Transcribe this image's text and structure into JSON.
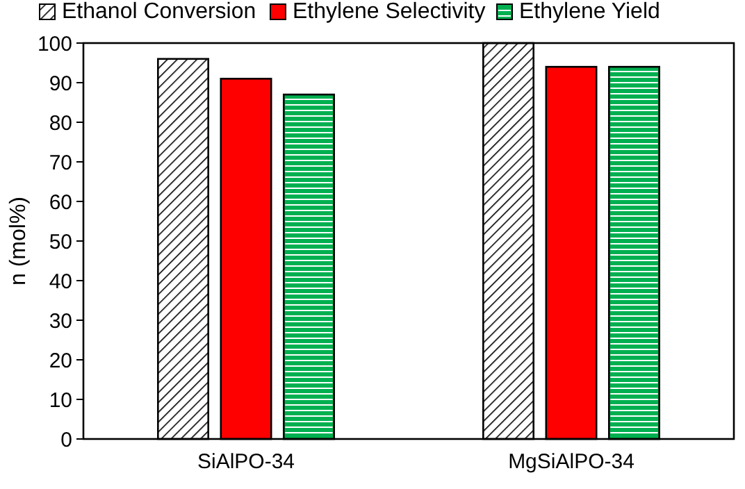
{
  "chart_data": {
    "type": "bar",
    "ylabel": "n (mol%)",
    "categories": [
      "SiAlPO-34",
      "MgSiAlPO-34"
    ],
    "series": [
      {
        "name": "Ethanol Conversion",
        "color": "#000000",
        "values": [
          96,
          100
        ]
      },
      {
        "name": "Ethylene Selectivity",
        "color": "#ff0000",
        "values": [
          91,
          94
        ]
      },
      {
        "name": "Ethylene Yield",
        "color": "#00b050",
        "values": [
          87,
          94
        ]
      }
    ],
    "ylim": [
      0,
      100
    ],
    "yticks": [
      0,
      10,
      20,
      30,
      40,
      50,
      60,
      70,
      80,
      90,
      100
    ],
    "grid": false,
    "legend": "top"
  }
}
